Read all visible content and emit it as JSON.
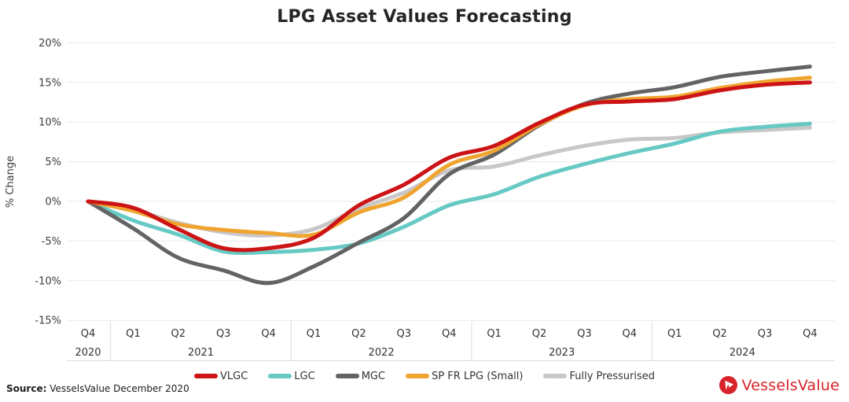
{
  "title": "LPG Asset Values Forecasting",
  "y_axis": {
    "label": "% Change",
    "ticks": [
      {
        "label": "20%",
        "value": 20
      },
      {
        "label": "15%",
        "value": 15
      },
      {
        "label": "10%",
        "value": 10
      },
      {
        "label": "5%",
        "value": 5
      },
      {
        "label": "0%",
        "value": 0
      },
      {
        "label": "-5%",
        "value": -5
      },
      {
        "label": "-10%",
        "value": -10
      },
      {
        "label": "-15%",
        "value": -15
      }
    ]
  },
  "x_axis": {
    "years": [
      {
        "label": "2020",
        "quarters": [
          "Q4"
        ]
      },
      {
        "label": "2021",
        "quarters": [
          "Q1",
          "Q2",
          "Q3",
          "Q4"
        ]
      },
      {
        "label": "2022",
        "quarters": [
          "Q1",
          "Q2",
          "Q3",
          "Q4"
        ]
      },
      {
        "label": "2023",
        "quarters": [
          "Q1",
          "Q2",
          "Q3",
          "Q4"
        ]
      },
      {
        "label": "2024",
        "quarters": [
          "Q1",
          "Q2",
          "Q3",
          "Q4"
        ]
      }
    ]
  },
  "chart_data": {
    "type": "line",
    "title": "LPG Asset Values Forecasting",
    "ylabel": "% Change",
    "ylim": [
      -15,
      20
    ],
    "grid": true,
    "legend_position": "bottom",
    "x": [
      "Q4 2020",
      "Q1 2021",
      "Q2 2021",
      "Q3 2021",
      "Q4 2021",
      "Q1 2022",
      "Q2 2022",
      "Q3 2022",
      "Q4 2022",
      "Q1 2023",
      "Q2 2023",
      "Q3 2023",
      "Q4 2023",
      "Q1 2024",
      "Q2 2024",
      "Q3 2024",
      "Q4 2024"
    ],
    "series": [
      {
        "name": "VLGC",
        "color": "#cc1315",
        "values": [
          0,
          -0.8,
          -3.5,
          -5.9,
          -5.9,
          -4.6,
          -0.5,
          2.1,
          5.5,
          7.0,
          9.9,
          12.2,
          12.6,
          12.9,
          14.0,
          14.7,
          15.0
        ]
      },
      {
        "name": "LGC",
        "color": "#66c9c3",
        "values": [
          0,
          -2.4,
          -4.2,
          -6.3,
          -6.4,
          -6.1,
          -5.3,
          -3.2,
          -0.5,
          0.9,
          3.1,
          4.7,
          6.1,
          7.3,
          8.8,
          9.4,
          9.8
        ]
      },
      {
        "name": "MGC",
        "color": "#636363",
        "values": [
          0,
          -3.4,
          -7.1,
          -8.7,
          -10.3,
          -8.2,
          -5.2,
          -2.1,
          3.4,
          5.9,
          9.6,
          12.3,
          13.6,
          14.4,
          15.7,
          16.4,
          17.0
        ]
      },
      {
        "name": "SP FR LPG (Small)",
        "color": "#f0a430",
        "values": [
          0,
          -1.2,
          -2.9,
          -3.6,
          -4.0,
          -4.2,
          -1.4,
          0.5,
          4.6,
          6.4,
          9.7,
          12.1,
          12.9,
          13.2,
          14.3,
          15.1,
          15.6
        ]
      },
      {
        "name": "Fully Pressurised",
        "color": "#c8c8c8",
        "values": [
          0,
          -1.1,
          -2.7,
          -3.9,
          -4.3,
          -3.5,
          -0.9,
          1.1,
          3.9,
          4.4,
          5.8,
          7.0,
          7.8,
          8.0,
          8.7,
          9.0,
          9.3
        ]
      }
    ],
    "draw_order": [
      "Fully Pressurised",
      "LGC",
      "MGC",
      "SP FR LPG (Small)",
      "VLGC"
    ]
  },
  "legend": [
    {
      "name": "VLGC",
      "color": "#cc1315"
    },
    {
      "name": "LGC",
      "color": "#66c9c3"
    },
    {
      "name": "MGC",
      "color": "#636363"
    },
    {
      "name": "SP FR LPG (Small)",
      "color": "#f0a430"
    },
    {
      "name": "Fully Pressurised",
      "color": "#c8c8c8"
    }
  ],
  "footer": {
    "source_label": "Source:",
    "source_text": " VesselsValue December 2020",
    "logo_text": "VesselsValue",
    "logo_color": "#d8232a"
  }
}
